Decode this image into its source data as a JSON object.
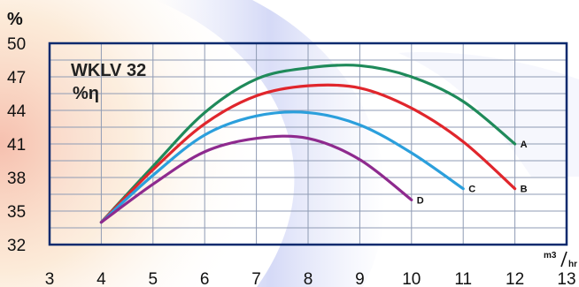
{
  "chart_data": {
    "type": "line",
    "title": "WKLV 32",
    "subtitle": "%η",
    "ylabel": "%",
    "xlabel_unit": {
      "numerator": "m3",
      "denominator": "hr"
    },
    "xlim": [
      3,
      13
    ],
    "ylim": [
      32,
      50
    ],
    "x_ticks": [
      "3",
      "4",
      "5",
      "6",
      "7",
      "8",
      "9",
      "10",
      "11",
      "12",
      "13"
    ],
    "y_ticks": [
      "32",
      "35",
      "38",
      "41",
      "44",
      "47",
      "50"
    ],
    "grid": true,
    "series": [
      {
        "name": "A",
        "color": "#1f8a5a",
        "x": [
          4,
          5,
          6,
          7,
          8,
          9,
          10,
          11,
          12
        ],
        "y": [
          34,
          39,
          43.8,
          46.8,
          47.8,
          48,
          47,
          44.8,
          41
        ]
      },
      {
        "name": "B",
        "color": "#e0262c",
        "x": [
          4,
          5,
          6,
          7,
          8,
          9,
          10,
          11,
          12
        ],
        "y": [
          34,
          38.7,
          42.8,
          45.3,
          46.2,
          46,
          44.2,
          41.2,
          37
        ]
      },
      {
        "name": "C",
        "color": "#2b9fdc",
        "x": [
          4,
          5,
          6,
          7,
          8,
          9,
          10,
          11
        ],
        "y": [
          34,
          38.2,
          41.8,
          43.5,
          43.8,
          42.7,
          40.2,
          37
        ]
      },
      {
        "name": "D",
        "color": "#8e2a8e",
        "x": [
          4,
          5,
          6,
          7,
          8,
          9,
          10
        ],
        "y": [
          34,
          37.4,
          40.3,
          41.5,
          41.5,
          39.6,
          36
        ]
      }
    ]
  }
}
